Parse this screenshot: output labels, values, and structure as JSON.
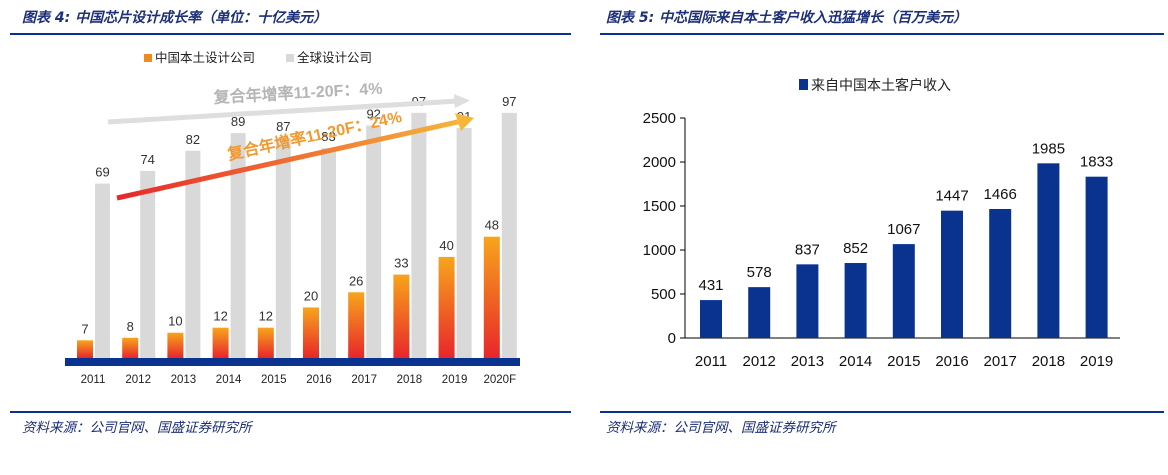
{
  "left": {
    "title": "图表 4:  中国芯片设计成长率（单位：十亿美元）",
    "source": "资料来源：公司官网、国盛证券研究所",
    "annotations": {
      "global_cagr": "复合年增率11-20F：4%",
      "china_cagr": "复合年增率11-20F：24%"
    },
    "colors": {
      "china": "#f08a1c",
      "china_dark": "#e8262a",
      "global": "#d9d9d9",
      "baseline": "#0a3390",
      "arrow_global": "#dedede",
      "arrow_china_start": "#e8262a",
      "arrow_china_end": "#f5b63a"
    },
    "chart_data": {
      "type": "bar",
      "categories": [
        "2011",
        "2012",
        "2013",
        "2014",
        "2015",
        "2016",
        "2017",
        "2018",
        "2019",
        "2020F"
      ],
      "series": [
        {
          "name": "中国本土设计公司",
          "values": [
            7,
            8,
            10,
            12,
            12,
            20,
            26,
            33,
            40,
            48
          ]
        },
        {
          "name": "全球设计公司",
          "values": [
            69,
            74,
            82,
            89,
            87,
            83,
            92,
            97,
            91,
            97
          ]
        }
      ],
      "legend": "top-center",
      "grid": false,
      "ylim": [
        0,
        110
      ]
    }
  },
  "right": {
    "title": "图表 5:  中芯国际来自本土客户收入迅猛增长（百万美元）",
    "source": "资料来源：公司官网、国盛证券研究所",
    "colors": {
      "bar": "#0a3390",
      "axis": "#000000"
    },
    "chart_data": {
      "type": "bar",
      "categories": [
        "2011",
        "2012",
        "2013",
        "2014",
        "2015",
        "2016",
        "2017",
        "2018",
        "2019"
      ],
      "series": [
        {
          "name": "来自中国本土客户收入",
          "values": [
            431,
            578,
            837,
            852,
            1067,
            1447,
            1466,
            1985,
            1833
          ]
        }
      ],
      "yticks": [
        "0",
        "500",
        "1000",
        "1500",
        "2000",
        "2500"
      ],
      "ylim": [
        0,
        2500
      ],
      "legend": "top-left",
      "grid": false
    }
  }
}
